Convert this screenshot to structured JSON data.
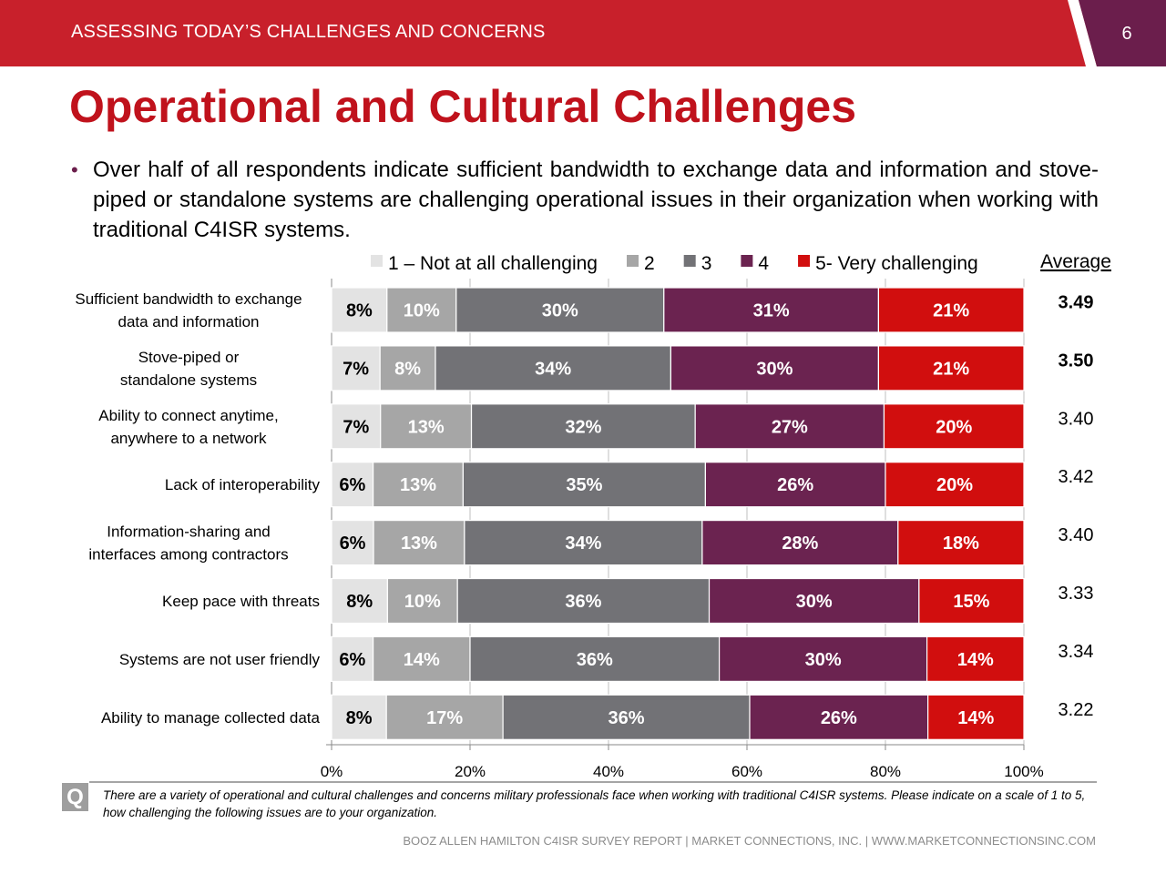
{
  "header": {
    "section": "ASSESSING TODAY’S CHALLENGES AND CONCERNS",
    "page": "6"
  },
  "slide_title": "Operational and Cultural Challenges",
  "bullet": "Over half of all respondents indicate sufficient bandwidth to exchange data and information and stove-piped or standalone systems are challenging operational issues in their organization when working with traditional C4ISR systems.",
  "question": "There are a variety of operational and cultural challenges and concerns military professionals face when working with traditional C4ISR systems. Please indicate on a scale of 1 to 5, how challenging the following issues are to your organization.",
  "question_icon": "Q",
  "footer": "BOOZ ALLEN HAMILTON C4ISR SURVEY REPORT   |   MARKET CONNECTIONS, INC.  |  WWW.MARKETCONNECTIONSINC.COM",
  "colors": {
    "header_red": "#c8202b",
    "header_purple": "#6b1e4c",
    "title_red": "#c0121c",
    "s1": "#e3e3e3",
    "s2": "#a6a6a6",
    "s3": "#727276",
    "s4": "#6b2350",
    "s5": "#d10e0e"
  },
  "chart_data": {
    "type": "bar",
    "orientation": "horizontal",
    "stacked": true,
    "categories": [
      [
        "Sufficient bandwidth to exchange",
        "data and information"
      ],
      [
        "Stove-piped or",
        "standalone systems"
      ],
      [
        "Ability to connect anytime,",
        "anywhere to a network"
      ],
      [
        "Lack of interoperability"
      ],
      [
        "Information-sharing and",
        "interfaces among contractors"
      ],
      [
        "Keep pace with threats"
      ],
      [
        "Systems are not user friendly"
      ],
      [
        "Ability to manage collected data"
      ]
    ],
    "series": [
      {
        "name": "1 – Not at all challenging",
        "values": [
          8,
          7,
          7,
          6,
          6,
          8,
          6,
          8
        ]
      },
      {
        "name": "2",
        "values": [
          10,
          8,
          13,
          13,
          13,
          10,
          14,
          17
        ]
      },
      {
        "name": "3",
        "values": [
          30,
          34,
          32,
          35,
          34,
          36,
          36,
          36
        ]
      },
      {
        "name": "4",
        "values": [
          31,
          30,
          27,
          26,
          28,
          30,
          30,
          26
        ]
      },
      {
        "name": "5- Very challenging",
        "values": [
          21,
          21,
          20,
          20,
          18,
          15,
          14,
          14
        ]
      }
    ],
    "average_header": "Average",
    "averages": [
      "3.49",
      "3.50",
      "3.40",
      "3.42",
      "3.40",
      "3.33",
      "3.34",
      "3.22"
    ],
    "bold_averages": [
      true,
      true,
      false,
      false,
      false,
      false,
      false,
      false
    ],
    "x_ticks": [
      "0%",
      "20%",
      "40%",
      "60%",
      "80%",
      "100%"
    ],
    "xlim": [
      0,
      100
    ],
    "legend_position": "top",
    "grid": false
  }
}
